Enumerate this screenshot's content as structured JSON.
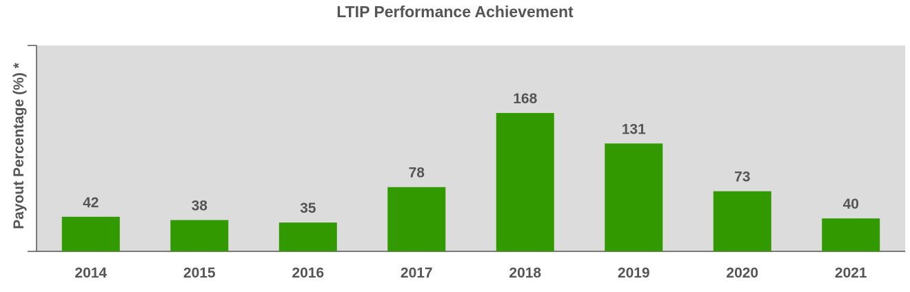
{
  "chart_data": {
    "type": "bar",
    "title": "LTIP Performance Achievement",
    "xlabel": "",
    "ylabel": "Payout Percentage (%) *",
    "categories": [
      "2014",
      "2015",
      "2016",
      "2017",
      "2018",
      "2019",
      "2020",
      "2021"
    ],
    "values": [
      42,
      38,
      35,
      78,
      168,
      131,
      73,
      40
    ],
    "ylim": [
      0,
      250
    ],
    "grid": false,
    "legend": "none",
    "bar_color": "#339900",
    "plot_background": "#dcdcdc"
  }
}
